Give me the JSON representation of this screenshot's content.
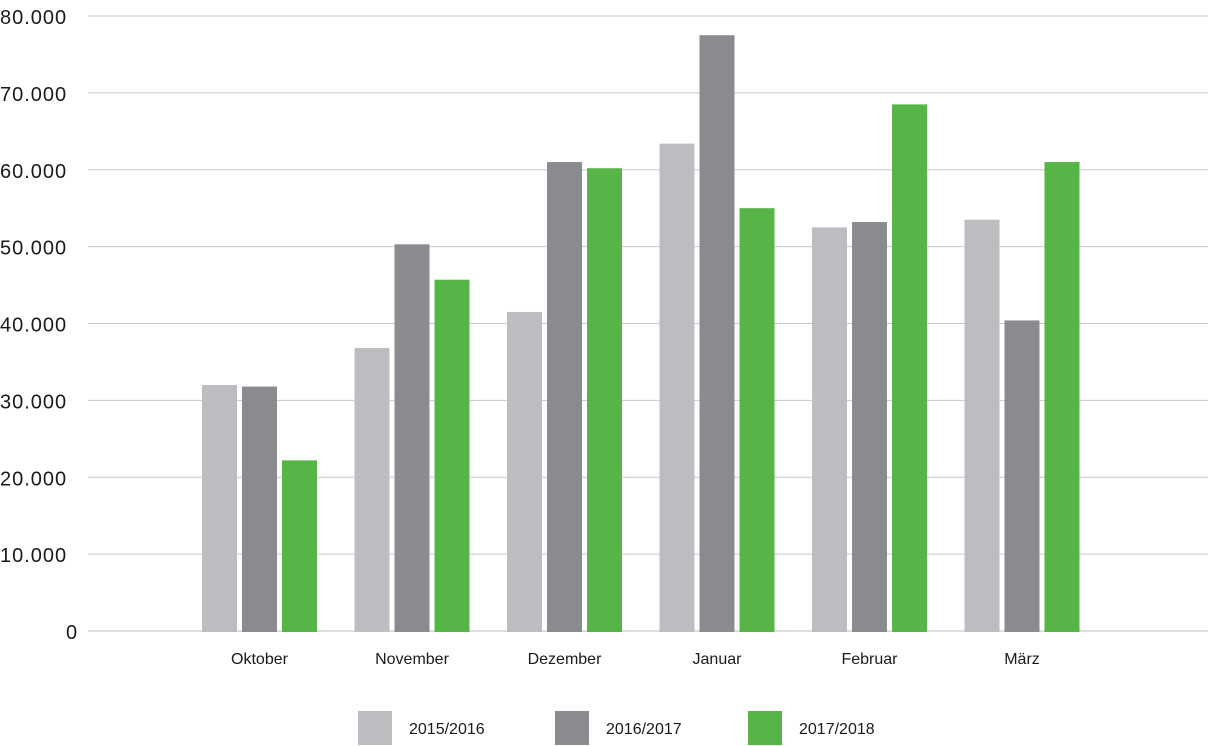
{
  "chart_data": {
    "type": "bar",
    "title": "",
    "xlabel": "",
    "ylabel": "",
    "ylim": [
      0,
      80000
    ],
    "grid": true,
    "legend_position": "bottom",
    "yticks": [
      {
        "value": 0,
        "label": "0"
      },
      {
        "value": 10000,
        "label": "10.000"
      },
      {
        "value": 20000,
        "label": "20.000"
      },
      {
        "value": 30000,
        "label": "30.000"
      },
      {
        "value": 40000,
        "label": "40.000"
      },
      {
        "value": 50000,
        "label": "50.000"
      },
      {
        "value": 60000,
        "label": "60.000"
      },
      {
        "value": 70000,
        "label": "70.000"
      },
      {
        "value": 80000,
        "label": "80.000"
      }
    ],
    "categories": [
      "Oktober",
      "November",
      "Dezember",
      "Januar",
      "Februar",
      "März"
    ],
    "series": [
      {
        "name": "2015/2016",
        "color": "#bcbdc0",
        "values": [
          32000,
          36800,
          41500,
          63400,
          52500,
          53500
        ]
      },
      {
        "name": "2016/2017",
        "color": "#8a8b8e",
        "values": [
          31800,
          50300,
          61000,
          77500,
          53200,
          40400
        ]
      },
      {
        "name": "2017/2018",
        "color": "#57b447",
        "values": [
          22200,
          45700,
          60200,
          55000,
          68500,
          61000
        ]
      }
    ]
  }
}
